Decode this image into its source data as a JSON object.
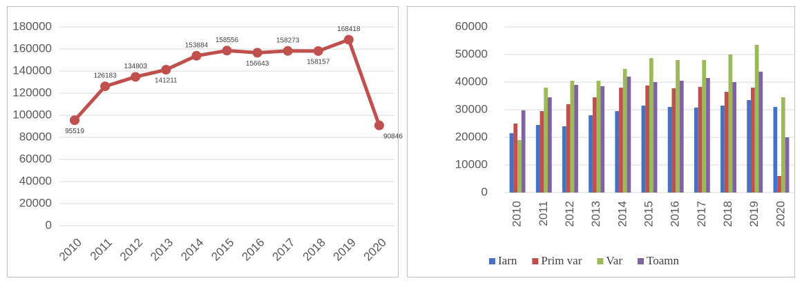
{
  "chart_data": [
    {
      "type": "line",
      "categories": [
        "2010",
        "2011",
        "2012",
        "2013",
        "2014",
        "2015",
        "2016",
        "2017",
        "2018",
        "2019",
        "2020"
      ],
      "values": [
        95519,
        126183,
        134803,
        141211,
        153884,
        158556,
        156643,
        158273,
        158157,
        168418,
        90846
      ],
      "color": "#c0504d",
      "ylim": [
        0,
        180000
      ],
      "yticks": [
        0,
        20000,
        40000,
        60000,
        80000,
        100000,
        120000,
        140000,
        160000,
        180000
      ],
      "grid": true
    },
    {
      "type": "bar",
      "categories": [
        "2010",
        "2011",
        "2012",
        "2013",
        "2014",
        "2015",
        "2016",
        "2017",
        "2018",
        "2019",
        "2020"
      ],
      "series": [
        {
          "name": "Iarn",
          "color": "#4472c4",
          "values": [
            21500,
            24500,
            24000,
            28000,
            29500,
            31500,
            31000,
            30800,
            31500,
            33500,
            31000
          ]
        },
        {
          "name": "Prim var",
          "color": "#c0504d",
          "values": [
            25000,
            29500,
            32000,
            34500,
            38000,
            38800,
            37800,
            38300,
            36500,
            38000,
            6000
          ]
        },
        {
          "name": "Var",
          "color": "#9bbb59",
          "values": [
            19000,
            38000,
            40500,
            40500,
            44800,
            48700,
            48000,
            48000,
            50000,
            53500,
            34500
          ]
        },
        {
          "name": "Toamn",
          "color": "#8064a2",
          "values": [
            29800,
            34500,
            39000,
            38500,
            42000,
            40000,
            40500,
            41500,
            40000,
            43800,
            20000
          ]
        }
      ],
      "ylim": [
        0,
        60000
      ],
      "yticks": [
        0,
        10000,
        20000,
        30000,
        40000,
        50000,
        60000
      ],
      "grid": true,
      "legend": "bottom"
    }
  ]
}
